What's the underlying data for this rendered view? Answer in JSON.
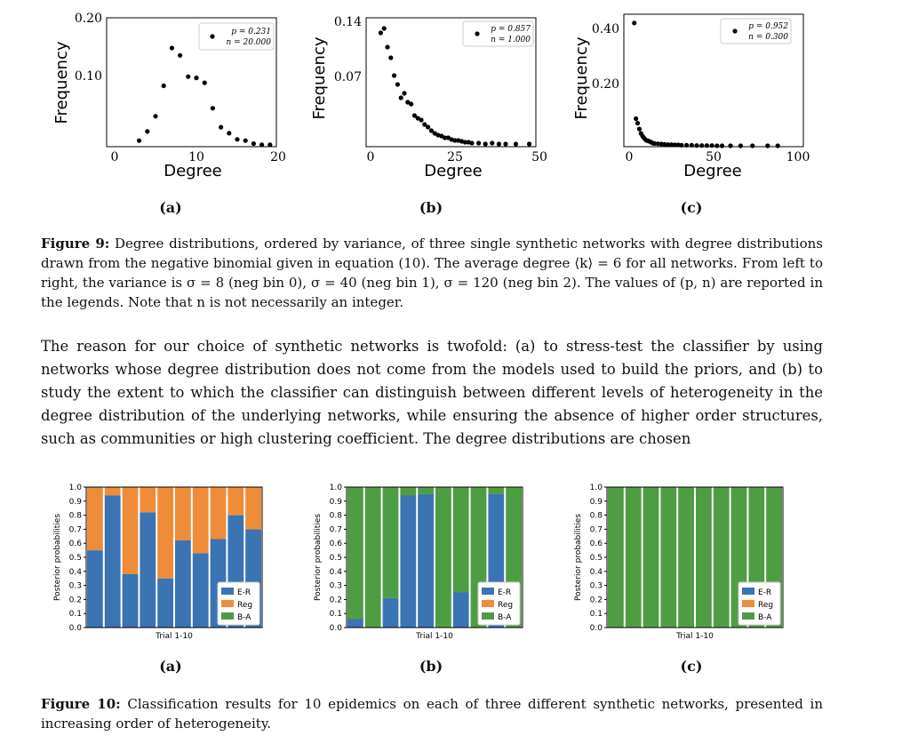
{
  "figure9": {
    "panels": [
      {
        "sublabel": "(a)",
        "ylabel": "Frequency",
        "xlabel": "Degree",
        "yticks": [
          "0.20",
          "0.10"
        ],
        "xticks": [
          "0",
          "10",
          "20"
        ],
        "legend": [
          "p = 0.231",
          "n = 20.000"
        ]
      },
      {
        "sublabel": "(b)",
        "ylabel": "Frequency",
        "xlabel": "Degree",
        "yticks": [
          "0.14",
          "0.07"
        ],
        "xticks": [
          "0",
          "25",
          "50"
        ],
        "legend": [
          "p = 0.857",
          "n = 1.000"
        ]
      },
      {
        "sublabel": "(c)",
        "ylabel": "Frequency",
        "xlabel": "Degree",
        "yticks": [
          "0.40",
          "0.20"
        ],
        "xticks": [
          "0",
          "50",
          "100"
        ],
        "legend": [
          "p = 0.952",
          "n = 0.300"
        ]
      }
    ],
    "caption_label": "Figure 9:",
    "caption_text": "Degree distributions, ordered by variance, of three single synthetic networks with degree distributions drawn from the negative binomial given in equation (10). The average degree ⟨k⟩ = 6 for all networks. From left to right, the variance is σ = 8 (neg bin 0), σ = 40 (neg bin 1), σ = 120 (neg bin 2). The values of (p, n) are reported in the legends. Note that n is not necessarily an integer."
  },
  "body_text": "The reason for our choice of synthetic networks is twofold: (a) to stress-test the classifier by using networks whose degree distribution does not come from the models used to build the priors, and (b) to study the extent to which the classifier can distinguish between different levels of heterogeneity in the degree distribution of the underlying networks, while ensuring the absence of higher order structures, such as communities or high clustering coefficient. The degree distributions are chosen",
  "figure10": {
    "panels": [
      {
        "sublabel": "(a)",
        "ylabel": "Posterior probabilities",
        "xlabel": "Trial 1-10"
      },
      {
        "sublabel": "(b)",
        "ylabel": "Posterior probabilities",
        "xlabel": "Trial 1-10"
      },
      {
        "sublabel": "(c)",
        "ylabel": "Posterior probabilities",
        "xlabel": "Trial 1-10"
      }
    ],
    "yticks": [
      "1.0",
      "0.9",
      "0.8",
      "0.7",
      "0.6",
      "0.5",
      "0.4",
      "0.3",
      "0.2",
      "0.1",
      "0.0"
    ],
    "legend": [
      "E-R",
      "Reg",
      "B-A"
    ],
    "colors": {
      "E-R": "#3a74b4",
      "Reg": "#ef8c3a",
      "B-A": "#4f9d43"
    },
    "caption_label": "Figure 10:",
    "caption_text": "Classification results for 10 epidemics on each of three different synthetic networks, presented in increasing order of heterogeneity."
  },
  "chart_data": [
    {
      "type": "scatter",
      "title": "",
      "xlabel": "Degree",
      "ylabel": "Frequency",
      "xlim": [
        0,
        20
      ],
      "ylim": [
        0,
        0.2
      ],
      "legend": [
        "p = 0.231",
        "n = 20.000"
      ],
      "series": [
        {
          "x": [
            3,
            4,
            5,
            6,
            7,
            8,
            9,
            10,
            11,
            12,
            13,
            14,
            15,
            16,
            17,
            18,
            19
          ],
          "y": [
            0.01,
            0.025,
            0.05,
            0.1,
            0.162,
            0.15,
            0.115,
            0.113,
            0.105,
            0.063,
            0.032,
            0.022,
            0.012,
            0.01,
            0.005,
            0.003,
            0.003
          ]
        }
      ]
    },
    {
      "type": "scatter",
      "title": "",
      "xlabel": "Degree",
      "ylabel": "Frequency",
      "xlim": [
        0,
        50
      ],
      "ylim": [
        0,
        0.14
      ],
      "legend": [
        "p = 0.857",
        "n = 1.000"
      ],
      "series": [
        {
          "x": [
            3,
            4,
            5,
            6,
            7,
            8,
            9,
            10,
            11,
            12,
            13,
            14,
            15,
            16,
            17,
            18,
            19,
            20,
            21,
            22,
            23,
            24,
            25,
            26,
            27,
            28,
            29,
            30,
            32,
            34,
            36,
            38,
            40,
            43,
            47
          ],
          "y": [
            0.128,
            0.133,
            0.112,
            0.1,
            0.08,
            0.07,
            0.055,
            0.06,
            0.05,
            0.048,
            0.035,
            0.032,
            0.03,
            0.025,
            0.022,
            0.018,
            0.015,
            0.013,
            0.012,
            0.01,
            0.01,
            0.008,
            0.007,
            0.007,
            0.006,
            0.005,
            0.005,
            0.004,
            0.004,
            0.003,
            0.004,
            0.003,
            0.003,
            0.003,
            0.003
          ]
        }
      ]
    },
    {
      "type": "scatter",
      "title": "",
      "xlabel": "Degree",
      "ylabel": "Frequency",
      "xlim": [
        0,
        100
      ],
      "ylim": [
        0,
        0.45
      ],
      "legend": [
        "p = 0.952",
        "n = 0.300"
      ],
      "series": [
        {
          "x": [
            3,
            4,
            5,
            6,
            7,
            8,
            9,
            10,
            11,
            12,
            13,
            14,
            15,
            17,
            19,
            21,
            23,
            25,
            27,
            29,
            31,
            34,
            37,
            40,
            43,
            46,
            49,
            52,
            55,
            60,
            66,
            73,
            82,
            88
          ],
          "y": [
            0.42,
            0.095,
            0.08,
            0.06,
            0.045,
            0.035,
            0.028,
            0.022,
            0.02,
            0.018,
            0.015,
            0.012,
            0.011,
            0.01,
            0.009,
            0.008,
            0.007,
            0.007,
            0.006,
            0.006,
            0.005,
            0.005,
            0.005,
            0.004,
            0.004,
            0.004,
            0.004,
            0.003,
            0.003,
            0.003,
            0.003,
            0.003,
            0.003,
            0.003
          ]
        }
      ]
    },
    {
      "type": "bar",
      "stacked": true,
      "title": "",
      "xlabel": "Trial 1-10",
      "ylabel": "Posterior probabilities",
      "categories": [
        "1",
        "2",
        "3",
        "4",
        "5",
        "6",
        "7",
        "8",
        "9",
        "10"
      ],
      "ylim": [
        0,
        1
      ],
      "series": [
        {
          "name": "E-R",
          "values": [
            0.55,
            0.94,
            0.38,
            0.82,
            0.35,
            0.62,
            0.53,
            0.63,
            0.8,
            0.7
          ]
        },
        {
          "name": "Reg",
          "values": [
            0.45,
            0.06,
            0.62,
            0.18,
            0.65,
            0.38,
            0.47,
            0.37,
            0.2,
            0.3
          ]
        },
        {
          "name": "B-A",
          "values": [
            0,
            0,
            0,
            0,
            0,
            0,
            0,
            0,
            0,
            0
          ]
        }
      ]
    },
    {
      "type": "bar",
      "stacked": true,
      "title": "",
      "xlabel": "Trial 1-10",
      "ylabel": "Posterior probabilities",
      "categories": [
        "1",
        "2",
        "3",
        "4",
        "5",
        "6",
        "7",
        "8",
        "9",
        "10"
      ],
      "ylim": [
        0,
        1
      ],
      "series": [
        {
          "name": "E-R",
          "values": [
            0.06,
            0,
            0.21,
            0.94,
            0.95,
            0,
            0.25,
            0,
            0.95,
            0
          ]
        },
        {
          "name": "Reg",
          "values": [
            0,
            0,
            0,
            0,
            0,
            0,
            0,
            0,
            0,
            0
          ]
        },
        {
          "name": "B-A",
          "values": [
            0.94,
            1,
            0.79,
            0.06,
            0.05,
            1,
            0.75,
            1,
            0.05,
            1
          ]
        }
      ]
    },
    {
      "type": "bar",
      "stacked": true,
      "title": "",
      "xlabel": "Trial 1-10",
      "ylabel": "Posterior probabilities",
      "categories": [
        "1",
        "2",
        "3",
        "4",
        "5",
        "6",
        "7",
        "8",
        "9",
        "10"
      ],
      "ylim": [
        0,
        1
      ],
      "series": [
        {
          "name": "E-R",
          "values": [
            0,
            0,
            0,
            0,
            0,
            0,
            0,
            0,
            0,
            0
          ]
        },
        {
          "name": "Reg",
          "values": [
            0,
            0,
            0,
            0,
            0,
            0,
            0,
            0,
            0,
            0
          ]
        },
        {
          "name": "B-A",
          "values": [
            1,
            1,
            1,
            1,
            1,
            1,
            1,
            1,
            1,
            1
          ]
        }
      ]
    }
  ]
}
